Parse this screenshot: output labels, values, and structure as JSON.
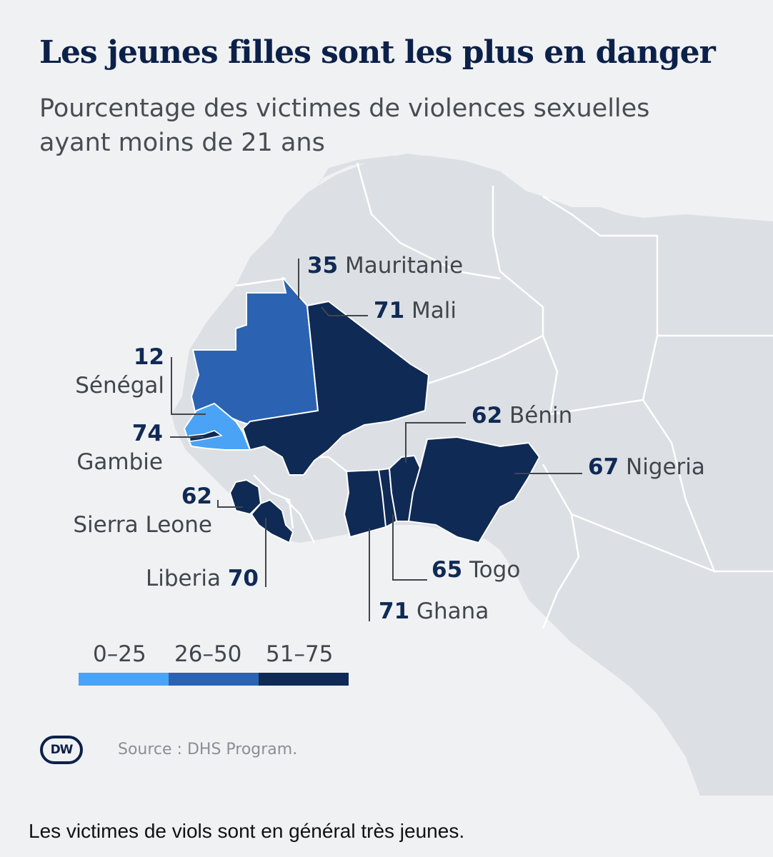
{
  "title": "Les jeunes filles sont les plus en danger",
  "subtitle": "Pourcentage des victimes de violences sexuelles ayant moins de 21 ans",
  "colors": {
    "background": "#f0f1f3",
    "land": "#dcdfe3",
    "border": "#ffffff",
    "bin_low": "#4aa3f5",
    "bin_mid": "#2b63b2",
    "bin_high": "#0f2a54",
    "title": "#0c2149"
  },
  "countries": {
    "mauritania": {
      "name": "Mauritanie",
      "value": "35"
    },
    "mali": {
      "name": "Mali",
      "value": "71"
    },
    "senegal": {
      "name": "Sénégal",
      "value": "12"
    },
    "gambia": {
      "name": "Gambie",
      "value": "74"
    },
    "sierra_leone": {
      "name": "Sierra Leone",
      "value": "62"
    },
    "liberia": {
      "name": "Liberia",
      "value": "70"
    },
    "ghana": {
      "name": "Ghana",
      "value": "71"
    },
    "togo": {
      "name": "Togo",
      "value": "65"
    },
    "benin": {
      "name": "Bénin",
      "value": "62"
    },
    "nigeria": {
      "name": "Nigeria",
      "value": "67"
    }
  },
  "legend": {
    "bins": [
      {
        "label": "0–25"
      },
      {
        "label": "26–50"
      },
      {
        "label": "51–75"
      }
    ]
  },
  "source": "Source : DHS Program.",
  "logo": "DW",
  "caption": "Les victimes de viols sont en général très jeunes."
}
